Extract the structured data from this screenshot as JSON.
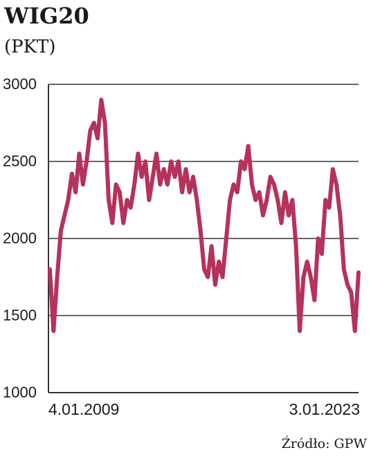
{
  "chart_data": {
    "type": "line",
    "title": "WIG20",
    "subtitle": "(PKT)",
    "source": "Źródło: GPW",
    "categories": [
      "4.01.2009",
      null,
      null,
      null,
      null,
      null,
      null,
      null,
      null,
      null,
      null,
      null,
      null,
      null,
      null,
      null,
      null,
      null,
      null,
      null,
      null,
      null,
      null,
      null,
      null,
      null,
      null,
      null,
      null,
      null,
      null,
      null,
      null,
      null,
      null,
      null,
      null,
      null,
      null,
      null,
      null,
      null,
      null,
      null,
      null,
      null,
      null,
      null,
      null,
      null,
      null,
      null,
      null,
      null,
      null,
      null,
      null,
      null,
      null,
      null,
      null,
      null,
      null,
      null,
      null,
      null,
      null,
      null,
      null,
      null,
      null,
      null,
      null,
      null,
      null,
      null,
      null,
      null,
      null,
      null,
      null,
      null,
      null,
      null,
      "3.01.2023"
    ],
    "series": [
      {
        "name": "WIG20",
        "color": "#b5325a",
        "values": [
          1800,
          1400,
          1750,
          2050,
          2150,
          2250,
          2420,
          2300,
          2550,
          2350,
          2500,
          2700,
          2750,
          2650,
          2900,
          2750,
          2250,
          2100,
          2350,
          2300,
          2100,
          2250,
          2200,
          2350,
          2550,
          2400,
          2500,
          2250,
          2400,
          2550,
          2350,
          2450,
          2350,
          2500,
          2400,
          2500,
          2300,
          2450,
          2300,
          2400,
          2250,
          2050,
          1800,
          1750,
          1950,
          1700,
          1850,
          1750,
          2000,
          2250,
          2350,
          2300,
          2500,
          2450,
          2600,
          2350,
          2250,
          2300,
          2150,
          2250,
          2400,
          2350,
          2250,
          2100,
          2300,
          2150,
          2250,
          1950,
          1400,
          1750,
          1850,
          1750,
          1600,
          2000,
          1900,
          2250,
          2200,
          2450,
          2350,
          2150,
          1800,
          1700,
          1650,
          1400,
          1780
        ]
      }
    ],
    "ylim": [
      1000,
      3000
    ],
    "yticks": [
      1000,
      1500,
      2000,
      2500,
      3000
    ],
    "grid": true
  }
}
